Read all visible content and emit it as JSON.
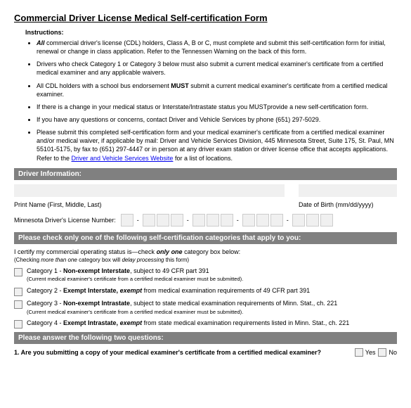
{
  "title": "Commercial Driver License Medical Self-certification Form",
  "instructions_label": "Instructions:",
  "bullets": {
    "b1_pre": "All",
    "b1_rest": " commercial driver's license (CDL) holders, Class A, B or C, must complete and submit this self-certification form for initial, renewal or change in class application. Refer to the Tennessen Warning on the back of this form.",
    "b2": "Drivers who check Category 1 or Category 3 below must also submit a current medical examiner's certificate from a certified medical examiner and any applicable waivers.",
    "b3_pre": "All CDL holders with a school bus endorsement ",
    "b3_must": "MUST",
    "b3_rest": " submit a current medical examiner's certificate from a certified medical examiner.",
    "b4": "If there is a change in your medical status or Interstate/Intrastate status you MUSTprovide a new self-certification form.",
    "b5": "If you have any questions or concerns, contact Driver and Vehicle Services by phone (651) 297-5029.",
    "b6_pre": "Please submit this completed self-certification form and your medical examiner's certificate from a certified medical examiner and/or medical waiver, if applicable by mail: Driver and Vehicle Services Division, 445 Minnesota Street, Suite 175, St. Paul, MN 55101-5175, by fax to (651) 297-4447 or in person at any driver exam station or driver license office that accepts applications. Refer to the ",
    "b6_link": "Driver and Vehicle Services Website",
    "b6_post": " for a list of locations."
  },
  "section_driver": "Driver Information:",
  "print_name_label": "Print Name (First, Middle, Last)",
  "dob_label": "Date of Birth (mm/dd/yyyy)",
  "license_label": "Minnesota Driver's License Number:",
  "section_cert": "Please check only one of the following self-certification categories that apply to you:",
  "cert_intro_pre": "I certify my commercial operating status is—check ",
  "cert_intro_bold": "only one",
  "cert_intro_post": " category box below:",
  "cert_note_pre": "(Checking ",
  "cert_note_ital": "more than one",
  "cert_note_mid": " category box will ",
  "cert_note_ital2": "delay processing",
  "cert_note_post": " this form)",
  "cat1_label": "Category 1 - ",
  "cat1_bold": "Non-exempt Interstate",
  "cat1_rest": ", subject to 49 CFR part 391",
  "cat1_sub": "(Current medical examiner's certificate from a certified medical examiner must be submitted).",
  "cat2_label": "Category 2 - ",
  "cat2_bold": "Exempt Interstate, ",
  "cat2_ital": "exempt",
  "cat2_rest": " from medical examination requirements of 49 CFR part 391",
  "cat3_label": "Category 3 - ",
  "cat3_bold": "Non-exempt Intrastate",
  "cat3_rest": ", subject to state medical examination requirements of Minn. Stat., ch. 221",
  "cat3_sub": "(Current medical examiner's certificate from a certified medical examiner must be submitted).",
  "cat4_label": "Category 4 - ",
  "cat4_bold": "Exempt Intrastate, ",
  "cat4_ital": "exempt",
  "cat4_rest": " from state medical examination requirements listed in Minn. Stat., ch. 221",
  "section_q": "Please answer the following two questions:",
  "q1": "1. Are you submitting a copy of your medical examiner's certificate from a certified medical examiner?",
  "yes": "Yes",
  "no": "No"
}
